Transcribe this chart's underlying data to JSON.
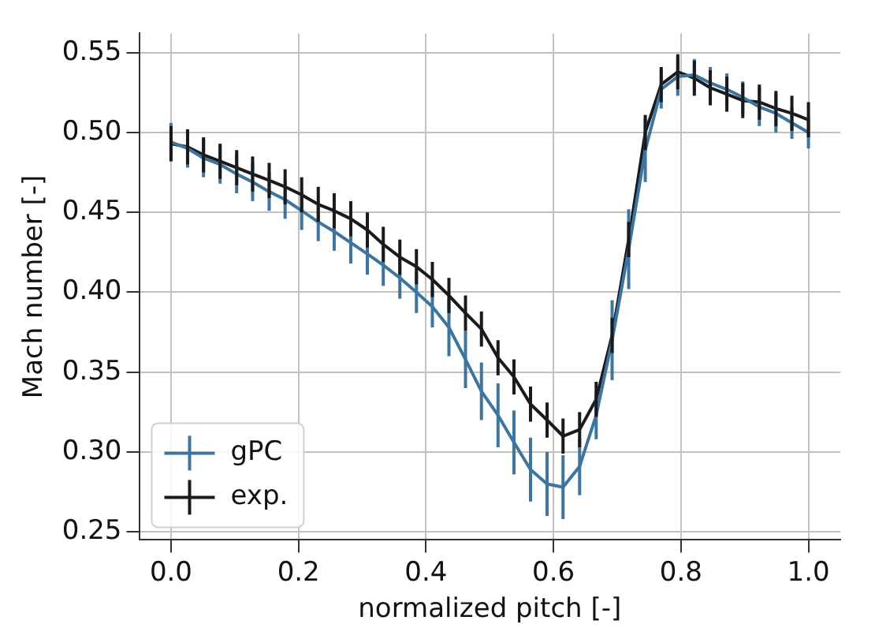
{
  "chart_data": {
    "type": "line",
    "xlabel": "normalized pitch [-]",
    "ylabel": "Mach number [-]",
    "x": [
      0,
      0.026,
      0.051,
      0.077,
      0.103,
      0.128,
      0.154,
      0.179,
      0.205,
      0.231,
      0.256,
      0.282,
      0.308,
      0.333,
      0.359,
      0.385,
      0.41,
      0.436,
      0.462,
      0.487,
      0.513,
      0.538,
      0.564,
      0.59,
      0.615,
      0.641,
      0.667,
      0.692,
      0.718,
      0.744,
      0.769,
      0.795,
      0.821,
      0.846,
      0.872,
      0.897,
      0.923,
      0.949,
      0.974,
      1
    ],
    "series": [
      {
        "name": "gPC",
        "color": "#3b75a0",
        "values": [
          0.494,
          0.49,
          0.484,
          0.48,
          0.474,
          0.469,
          0.463,
          0.458,
          0.451,
          0.444,
          0.438,
          0.431,
          0.424,
          0.417,
          0.409,
          0.4,
          0.391,
          0.378,
          0.358,
          0.338,
          0.323,
          0.306,
          0.289,
          0.28,
          0.278,
          0.291,
          0.323,
          0.37,
          0.427,
          0.489,
          0.527,
          0.535,
          0.536,
          0.531,
          0.527,
          0.522,
          0.516,
          0.512,
          0.506,
          0.5
        ],
        "errors": [
          0.012,
          0.012,
          0.012,
          0.012,
          0.012,
          0.012,
          0.012,
          0.012,
          0.012,
          0.012,
          0.012,
          0.013,
          0.013,
          0.013,
          0.013,
          0.013,
          0.013,
          0.018,
          0.018,
          0.018,
          0.02,
          0.02,
          0.02,
          0.02,
          0.02,
          0.018,
          0.015,
          0.025,
          0.025,
          0.02,
          0.012,
          0.012,
          0.01,
          0.01,
          0.01,
          0.01,
          0.012,
          0.012,
          0.01,
          0.01
        ]
      },
      {
        "name": "exp.",
        "color": "#1a1a1a",
        "values": [
          0.493,
          0.491,
          0.486,
          0.482,
          0.478,
          0.474,
          0.47,
          0.466,
          0.461,
          0.455,
          0.451,
          0.446,
          0.439,
          0.43,
          0.422,
          0.416,
          0.408,
          0.398,
          0.387,
          0.377,
          0.359,
          0.347,
          0.33,
          0.32,
          0.31,
          0.314,
          0.333,
          0.373,
          0.433,
          0.5,
          0.53,
          0.538,
          0.534,
          0.528,
          0.524,
          0.52,
          0.519,
          0.515,
          0.512,
          0.508
        ],
        "errors": [
          0.011,
          0.011,
          0.011,
          0.011,
          0.011,
          0.011,
          0.011,
          0.011,
          0.011,
          0.011,
          0.011,
          0.011,
          0.011,
          0.011,
          0.011,
          0.011,
          0.011,
          0.011,
          0.011,
          0.011,
          0.011,
          0.011,
          0.011,
          0.011,
          0.011,
          0.011,
          0.011,
          0.011,
          0.011,
          0.011,
          0.011,
          0.011,
          0.011,
          0.011,
          0.011,
          0.011,
          0.011,
          0.011,
          0.011,
          0.011
        ]
      }
    ],
    "xlim": [
      -0.05,
      1.05
    ],
    "ylim": [
      0.245,
      0.562
    ],
    "xticks": [
      {
        "value": 0,
        "label": "0.0"
      },
      {
        "value": 0.2,
        "label": "0.2"
      },
      {
        "value": 0.4,
        "label": "0.4"
      },
      {
        "value": 0.6,
        "label": "0.6"
      },
      {
        "value": 0.8,
        "label": "0.8"
      },
      {
        "value": 1,
        "label": "1.0"
      }
    ],
    "yticks": [
      {
        "value": 0.25,
        "label": "0.25"
      },
      {
        "value": 0.3,
        "label": "0.30"
      },
      {
        "value": 0.35,
        "label": "0.35"
      },
      {
        "value": 0.4,
        "label": "0.40"
      },
      {
        "value": 0.45,
        "label": "0.45"
      },
      {
        "value": 0.5,
        "label": "0.50"
      },
      {
        "value": 0.55,
        "label": "0.55"
      }
    ],
    "grid": true,
    "legend": "bottom left",
    "marker": "none",
    "line_style": "solid"
  }
}
